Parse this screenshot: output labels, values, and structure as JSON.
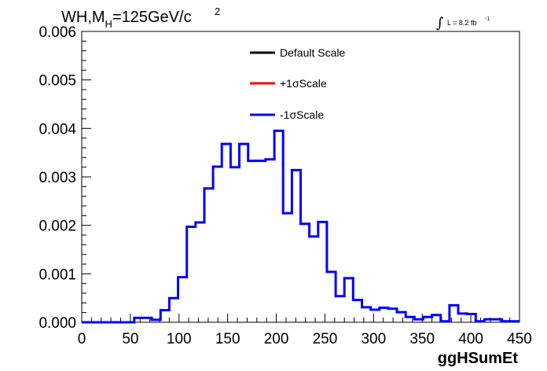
{
  "chart_data": {
    "type": "line",
    "title_main": "WH,M",
    "title_sub": "H",
    "title_rest": "=125GeV/c",
    "title_sup": "2",
    "lumi_text": "L = 8.2 fb",
    "lumi_sup": "-1",
    "lumi_symbol": "∫",
    "xlabel": "ggHSumEt",
    "xlim": [
      0,
      450
    ],
    "ylim": [
      0,
      0.006
    ],
    "x_ticks": [
      0,
      50,
      100,
      150,
      200,
      250,
      300,
      350,
      400,
      450
    ],
    "y_ticks": [
      0.0,
      0.001,
      0.002,
      0.003,
      0.004,
      0.005,
      0.006
    ],
    "y_tick_labels": [
      "0.000",
      "0.001",
      "0.002",
      "0.003",
      "0.004",
      "0.005",
      "0.006"
    ],
    "bin_width": 9,
    "bin_edges_start": 0,
    "legend": [
      {
        "label": "Default Scale",
        "color": "#000000"
      },
      {
        "label": "+1σScale",
        "color": "#ff0000"
      },
      {
        "label": "-1σScale",
        "color": "#0000ff"
      }
    ],
    "series": [
      {
        "name": "-1σScale",
        "color": "#0000ff",
        "values": [
          0,
          0,
          0,
          0,
          0,
          0,
          9e-05,
          9e-05,
          5e-05,
          0.00025,
          0.0005,
          0.00093,
          0.00197,
          0.00206,
          0.00276,
          0.00321,
          0.00368,
          0.0032,
          0.00368,
          0.00333,
          0.00333,
          0.00336,
          0.00395,
          0.00225,
          0.00314,
          0.00203,
          0.00177,
          0.00207,
          0.00104,
          0.00054,
          0.00091,
          0.00046,
          0.00031,
          0.00026,
          0.0003,
          0.00028,
          0.00021,
          0.00011,
          6e-05,
          0.00011,
          0.00015,
          2e-05,
          0.00035,
          0.00018,
          0.00017,
          2e-05,
          6e-05,
          6e-05,
          2e-05,
          2e-05
        ]
      }
    ]
  }
}
